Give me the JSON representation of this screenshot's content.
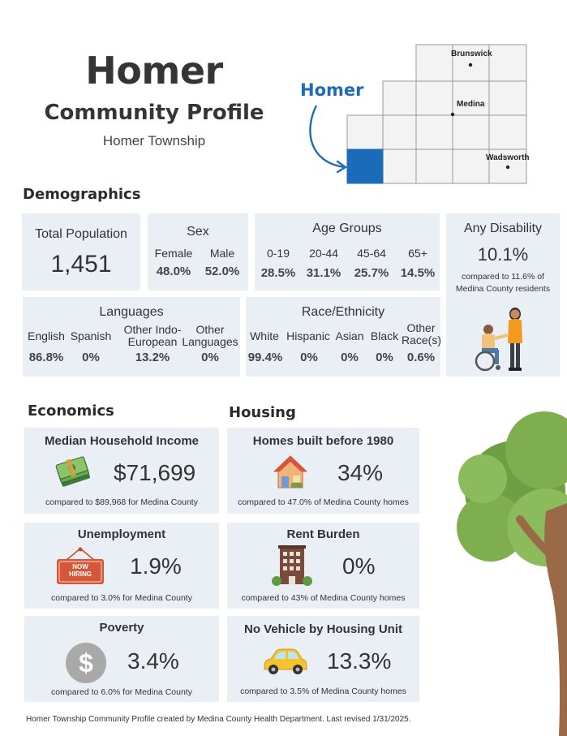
{
  "header": {
    "title": "Homer",
    "subtitle": "Community Profile",
    "area": "Homer Township"
  },
  "map": {
    "highlight_label": "Homer",
    "towns": {
      "brunswick": "Brunswick",
      "medina": "Medina",
      "wadsworth": "Wadsworth"
    },
    "highlight_color": "#1f6bb5"
  },
  "demographics": {
    "section_title": "Demographics",
    "total_population": {
      "label": "Total Population",
      "value": "1,451"
    },
    "sex": {
      "label": "Sex",
      "items": [
        {
          "label": "Female",
          "value": "48.0%"
        },
        {
          "label": "Male",
          "value": "52.0%"
        }
      ]
    },
    "age_groups": {
      "label": "Age Groups",
      "items": [
        {
          "label": "0-19",
          "value": "28.5%"
        },
        {
          "label": "20-44",
          "value": "31.1%"
        },
        {
          "label": "45-64",
          "value": "25.7%"
        },
        {
          "label": "65+",
          "value": "14.5%"
        }
      ]
    },
    "disability": {
      "label": "Any Disability",
      "value": "10.1%",
      "note_line1": "compared to 11.6% of",
      "note_line2": "Medina County residents"
    },
    "languages": {
      "label": "Languages",
      "items": [
        {
          "label1": "",
          "label2": "English",
          "value": "86.8%"
        },
        {
          "label1": "",
          "label2": "Spanish",
          "value": "0%"
        },
        {
          "label1": "Other Indo-",
          "label2": "European",
          "value": "13.2%"
        },
        {
          "label1": "Other",
          "label2": "Languages",
          "value": "0%"
        }
      ]
    },
    "race": {
      "label": "Race/Ethnicity",
      "items": [
        {
          "label1": "",
          "label2": "White",
          "value": "99.4%"
        },
        {
          "label1": "",
          "label2": "Hispanic",
          "value": "0%"
        },
        {
          "label1": "",
          "label2": "Asian",
          "value": "0%"
        },
        {
          "label1": "",
          "label2": "Black",
          "value": "0%"
        },
        {
          "label1": "Other",
          "label2": "Race(s)",
          "value": "0.6%"
        }
      ]
    }
  },
  "economics": {
    "section_title": "Economics",
    "income": {
      "title": "Median Household Income",
      "value": "$71,699",
      "note": "compared to $89,968 for Medina County",
      "icon": "money-stack-icon"
    },
    "unemployment": {
      "title": "Unemployment",
      "value": "1.9%",
      "note": "compared to 3.0% for Medina County",
      "icon": "now-hiring-sign-icon",
      "sign_line1": "NOW",
      "sign_line2": "HIRING"
    },
    "poverty": {
      "title": "Poverty",
      "value": "3.4%",
      "note": "compared to 6.0% for Medina County",
      "icon": "dollar-coin-icon",
      "symbol": "$"
    }
  },
  "housing": {
    "section_title": "Housing",
    "homes_before_1980": {
      "title": "Homes built before 1980",
      "value": "34%",
      "note": "compared to 47.0% of Medina County homes",
      "icon": "house-icon"
    },
    "rent_burden": {
      "title": "Rent Burden",
      "value": "0%",
      "note": "compared to 43% of Medina County homes",
      "icon": "apartment-building-icon"
    },
    "no_vehicle": {
      "title": "No Vehicle by Housing Unit",
      "value": "13.3%",
      "note": "compared to 3.5% of Medina County homes",
      "icon": "car-icon"
    }
  },
  "footer": {
    "text": "Homer Township Community Profile created by Medina County Health Department. Last revised 1/31/2025."
  },
  "colors": {
    "card_bg": "#eaeff6",
    "accent_blue": "#1f6bb5",
    "tree_green": "#7fae4f",
    "tree_trunk": "#9a6a48"
  }
}
